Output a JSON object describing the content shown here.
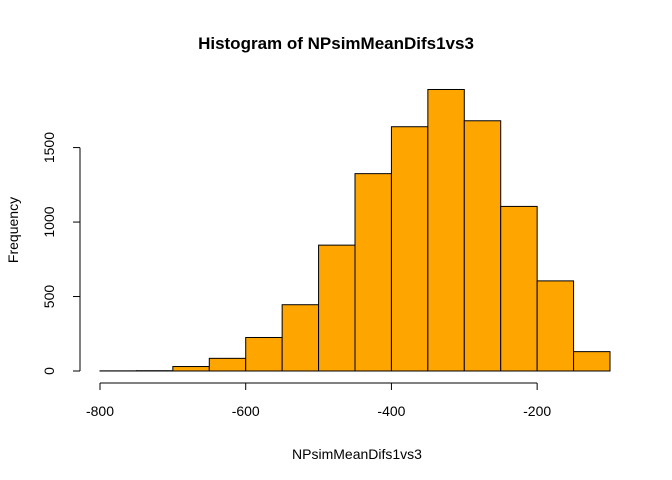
{
  "chart_data": {
    "type": "bar",
    "title": "Histogram of NPsimMeanDifs1vs3",
    "xlabel": "NPsimMeanDifs1vs3",
    "ylabel": "Frequency",
    "bar_color": "#FFA500",
    "bin_edges": [
      -800,
      -750,
      -700,
      -650,
      -600,
      -550,
      -500,
      -450,
      -400,
      -350,
      -300,
      -250,
      -200,
      -150,
      -100
    ],
    "values": [
      1,
      2,
      30,
      85,
      225,
      445,
      845,
      1325,
      1640,
      1890,
      1680,
      1105,
      605,
      130
    ],
    "xlim": [
      -800,
      -100
    ],
    "ylim": [
      0,
      1900
    ],
    "x_ticks": [
      -800,
      -600,
      -400,
      -200
    ],
    "x_tick_labels": [
      "-800",
      "-600",
      "-400",
      "-200"
    ],
    "y_ticks": [
      0,
      500,
      1000,
      1500
    ],
    "y_tick_labels": [
      "0",
      "500",
      "1000",
      "1500"
    ],
    "grid": false,
    "legend": "none"
  }
}
